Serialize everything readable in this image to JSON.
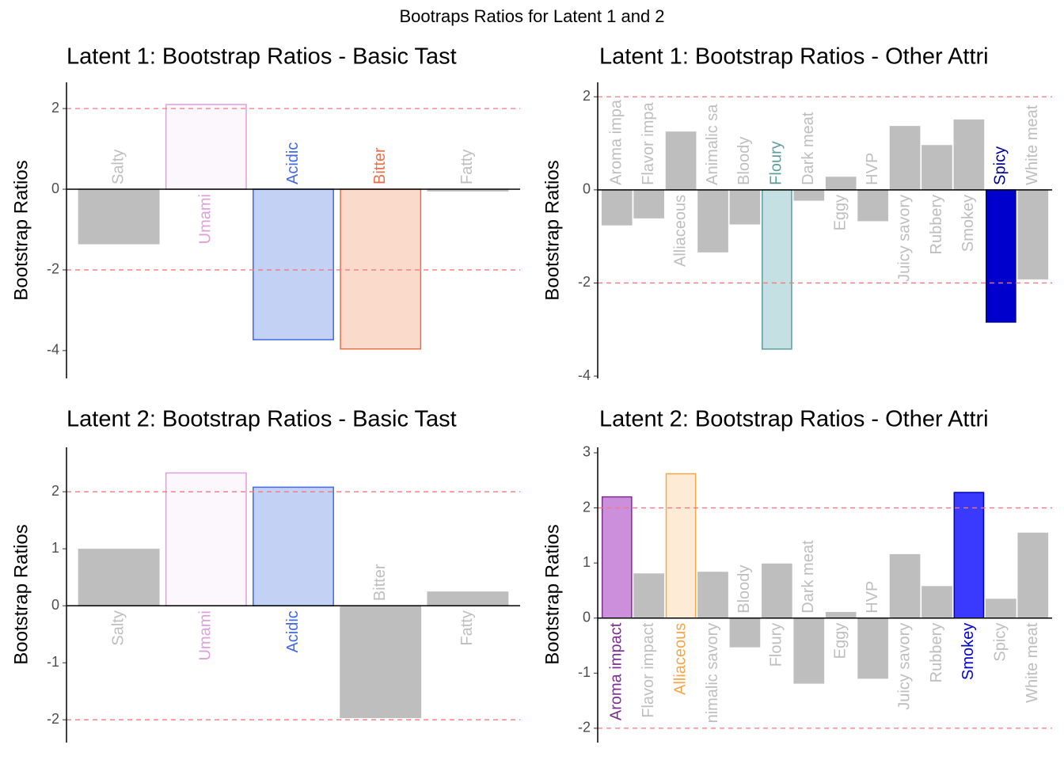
{
  "title": "Bootraps Ratios for Latent 1 and 2",
  "chart_data": [
    {
      "type": "bar",
      "title": "Latent 1: Bootstrap Ratios - Basic Tast",
      "ylabel": "Bootstrap Ratios",
      "categories": [
        "Salty",
        "Umami",
        "Acidic",
        "Bitter",
        "Fatty"
      ],
      "values": [
        -1.35,
        2.1,
        -3.73,
        -3.96,
        -0.04
      ],
      "colors": [
        "#bebebe",
        "#fbf7fc",
        "#c3d1f5",
        "#fadbcb",
        "#bebebe"
      ],
      "edgecolors": [
        "#bebebe",
        "#dda0dd",
        "#4169e1",
        "#e8704a",
        "#bebebe"
      ],
      "label_colors": [
        "#bebebe",
        "#dda0dd",
        "#4169e1",
        "#e8704a",
        "#bebebe"
      ],
      "ylim": [
        -4.69,
        2.65
      ],
      "yticks": [
        -4,
        -2,
        0,
        2
      ],
      "hlines": [
        -2,
        2
      ],
      "hline_color": "#f4777f"
    },
    {
      "type": "bar",
      "title": "Latent 1: Bootstrap Ratios - Other Attri",
      "ylabel": "Bootstrap Ratios",
      "categories": [
        "Aroma impa",
        "Flavor impa",
        "Alliaceous",
        "Animalic sa",
        "Bloody",
        "Floury",
        "Dark meat",
        "Eggy",
        "HVP",
        "Juicy savory",
        "Rubbery",
        "Smokey",
        "Spicy",
        "White meat"
      ],
      "values": [
        -0.75,
        -0.6,
        1.24,
        -1.33,
        -0.73,
        -3.42,
        -0.22,
        0.27,
        -0.66,
        1.36,
        0.95,
        1.5,
        -2.84,
        -1.91
      ],
      "colors": [
        "#bebebe",
        "#bebebe",
        "#bebebe",
        "#bebebe",
        "#bebebe",
        "#c5e0e3",
        "#bebebe",
        "#bebebe",
        "#bebebe",
        "#bebebe",
        "#bebebe",
        "#bebebe",
        "#0000cd",
        "#bebebe"
      ],
      "edgecolors": [
        "#bebebe",
        "#bebebe",
        "#bebebe",
        "#bebebe",
        "#bebebe",
        "#5f9ea0",
        "#bebebe",
        "#bebebe",
        "#bebebe",
        "#bebebe",
        "#bebebe",
        "#bebebe",
        "#00008b",
        "#bebebe"
      ],
      "label_colors": [
        "#bebebe",
        "#bebebe",
        "#bebebe",
        "#bebebe",
        "#bebebe",
        "#5f9ea0",
        "#bebebe",
        "#bebebe",
        "#bebebe",
        "#bebebe",
        "#bebebe",
        "#bebebe",
        "#00008b",
        "#bebebe"
      ],
      "ylim": [
        -4.05,
        2.31
      ],
      "yticks": [
        -4,
        -2,
        0,
        2
      ],
      "hlines": [
        -2,
        2
      ],
      "hline_color": "#f4777f"
    },
    {
      "type": "bar",
      "title": "Latent 2: Bootstrap Ratios - Basic Tast",
      "ylabel": "Bootstrap Ratios",
      "categories": [
        "Salty",
        "Umami",
        "Acidic",
        "Bitter",
        "Fatty"
      ],
      "values": [
        0.99,
        2.33,
        2.08,
        -1.96,
        0.24
      ],
      "colors": [
        "#bebebe",
        "#fbf7fc",
        "#c3d1f5",
        "#bebebe",
        "#bebebe"
      ],
      "edgecolors": [
        "#bebebe",
        "#dda0dd",
        "#4169e1",
        "#bebebe",
        "#bebebe"
      ],
      "label_colors": [
        "#bebebe",
        "#dda0dd",
        "#4169e1",
        "#bebebe",
        "#bebebe"
      ],
      "ylim": [
        -2.4,
        2.78
      ],
      "yticks": [
        -2,
        -1,
        0,
        1,
        2
      ],
      "hlines": [
        -2,
        2
      ],
      "hline_color": "#f4777f"
    },
    {
      "type": "bar",
      "title": "Latent 2: Bootstrap Ratios - Other Attri",
      "ylabel": "Bootstrap Ratios",
      "categories": [
        "Aroma impact",
        "Flavor impact",
        "Alliaceous",
        "nimalic savory",
        "Bloody",
        "Floury",
        "Dark meat",
        "Eggy",
        "HVP",
        "Juicy savory",
        "Rubbery",
        "Smokey",
        "Spicy",
        "White meat"
      ],
      "values": [
        2.2,
        0.8,
        2.62,
        0.83,
        -0.52,
        0.98,
        -1.18,
        0.1,
        -1.09,
        1.15,
        0.57,
        2.28,
        0.34,
        1.54
      ],
      "colors": [
        "#cc8fdb",
        "#bebebe",
        "#fdebd5",
        "#bebebe",
        "#bebebe",
        "#bebebe",
        "#bebebe",
        "#bebebe",
        "#bebebe",
        "#bebebe",
        "#bebebe",
        "#3a3aff",
        "#bebebe",
        "#bebebe"
      ],
      "edgecolors": [
        "#7b2f8f",
        "#bebebe",
        "#f5a54a",
        "#bebebe",
        "#bebebe",
        "#bebebe",
        "#bebebe",
        "#bebebe",
        "#bebebe",
        "#bebebe",
        "#bebebe",
        "#0000cd",
        "#bebebe",
        "#bebebe"
      ],
      "label_colors": [
        "#7b2f8f",
        "#bebebe",
        "#f5a54a",
        "#bebebe",
        "#bebebe",
        "#bebebe",
        "#bebebe",
        "#bebebe",
        "#bebebe",
        "#bebebe",
        "#bebebe",
        "#0000cd",
        "#bebebe",
        "#bebebe"
      ],
      "ylim": [
        -2.26,
        3.1
      ],
      "yticks": [
        -2,
        -1,
        0,
        1,
        2,
        3
      ],
      "hlines": [
        -2,
        2
      ],
      "hline_color": "#f4777f"
    }
  ]
}
